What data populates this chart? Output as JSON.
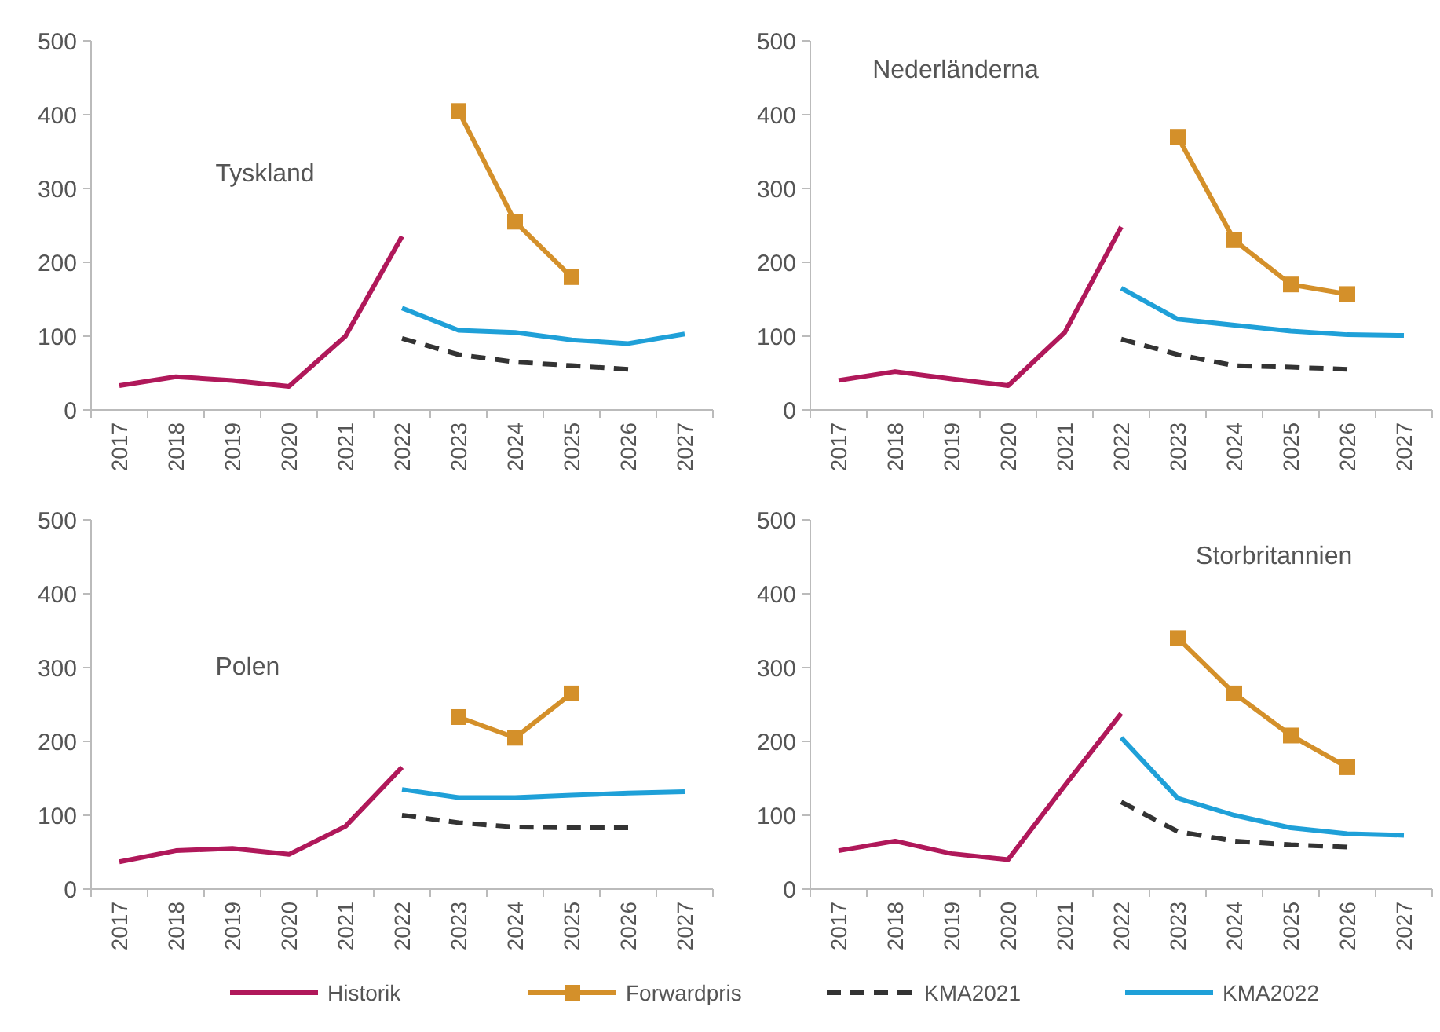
{
  "chart_data": [
    {
      "type": "line",
      "title": "Tyskland",
      "categories": [
        "2017",
        "2018",
        "2019",
        "2020",
        "2021",
        "2022",
        "2023",
        "2024",
        "2025",
        "2026",
        "2027"
      ],
      "ylim": [
        0,
        500
      ],
      "yticks": [
        0,
        100,
        200,
        300,
        400,
        500
      ],
      "grid": false,
      "legend": "bottom",
      "series": [
        {
          "name": "Historik",
          "color": "#b0185a",
          "line_style": "solid",
          "marker": "none",
          "values": [
            33,
            45,
            40,
            32,
            100,
            235,
            null,
            null,
            null,
            null,
            null
          ]
        },
        {
          "name": "Forwardpris",
          "color": "#d4902a",
          "line_style": "solid",
          "marker": "square",
          "values": [
            null,
            null,
            null,
            null,
            null,
            null,
            405,
            255,
            180,
            null,
            null
          ]
        },
        {
          "name": "KMA2021",
          "color": "#333333",
          "line_style": "dashed",
          "marker": "none",
          "values": [
            null,
            null,
            null,
            null,
            null,
            97,
            75,
            65,
            60,
            55,
            null
          ]
        },
        {
          "name": "KMA2022",
          "color": "#1fa0d8",
          "line_style": "solid",
          "marker": "none",
          "values": [
            null,
            null,
            null,
            null,
            null,
            138,
            108,
            105,
            95,
            90,
            103
          ]
        }
      ]
    },
    {
      "type": "line",
      "title": "Nederländerna",
      "categories": [
        "2017",
        "2018",
        "2019",
        "2020",
        "2021",
        "2022",
        "2023",
        "2024",
        "2025",
        "2026",
        "2027"
      ],
      "ylim": [
        0,
        500
      ],
      "yticks": [
        0,
        100,
        200,
        300,
        400,
        500
      ],
      "grid": false,
      "series": [
        {
          "color": "#b0185a",
          "line_style": "solid",
          "marker": "none",
          "values": [
            40,
            52,
            42,
            33,
            105,
            248,
            null,
            null,
            null,
            null,
            null
          ]
        },
        {
          "color": "#d4902a",
          "line_style": "solid",
          "marker": "square",
          "values": [
            null,
            null,
            null,
            null,
            null,
            null,
            370,
            230,
            170,
            157,
            null
          ]
        },
        {
          "color": "#333333",
          "line_style": "dashed",
          "marker": "none",
          "values": [
            null,
            null,
            null,
            null,
            null,
            96,
            75,
            60,
            58,
            55,
            null
          ]
        },
        {
          "color": "#1fa0d8",
          "line_style": "solid",
          "marker": "none",
          "values": [
            null,
            null,
            null,
            null,
            null,
            165,
            123,
            115,
            107,
            102,
            101
          ]
        }
      ]
    },
    {
      "type": "line",
      "title": "Polen",
      "categories": [
        "2017",
        "2018",
        "2019",
        "2020",
        "2021",
        "2022",
        "2023",
        "2024",
        "2025",
        "2026",
        "2027"
      ],
      "ylim": [
        0,
        500
      ],
      "yticks": [
        0,
        100,
        200,
        300,
        400,
        500
      ],
      "grid": false,
      "series": [
        {
          "color": "#b0185a",
          "line_style": "solid",
          "marker": "none",
          "values": [
            37,
            52,
            55,
            47,
            85,
            165,
            null,
            null,
            null,
            null,
            null
          ]
        },
        {
          "color": "#d4902a",
          "line_style": "solid",
          "marker": "square",
          "values": [
            null,
            null,
            null,
            null,
            null,
            null,
            233,
            205,
            265,
            null,
            null
          ]
        },
        {
          "color": "#333333",
          "line_style": "dashed",
          "marker": "none",
          "values": [
            null,
            null,
            null,
            null,
            null,
            100,
            90,
            84,
            83,
            83,
            null
          ]
        },
        {
          "color": "#1fa0d8",
          "line_style": "solid",
          "marker": "none",
          "values": [
            null,
            null,
            null,
            null,
            null,
            135,
            124,
            124,
            127,
            130,
            132
          ]
        }
      ]
    },
    {
      "type": "line",
      "title": "Storbritannien",
      "categories": [
        "2017",
        "2018",
        "2019",
        "2020",
        "2021",
        "2022",
        "2023",
        "2024",
        "2025",
        "2026",
        "2027"
      ],
      "ylim": [
        0,
        500
      ],
      "yticks": [
        0,
        100,
        200,
        300,
        400,
        500
      ],
      "grid": false,
      "series": [
        {
          "color": "#b0185a",
          "line_style": "solid",
          "marker": "none",
          "values": [
            52,
            65,
            48,
            40,
            140,
            238,
            null,
            null,
            null,
            null,
            null
          ]
        },
        {
          "color": "#d4902a",
          "line_style": "solid",
          "marker": "square",
          "values": [
            null,
            null,
            null,
            null,
            null,
            null,
            340,
            265,
            208,
            165,
            null
          ]
        },
        {
          "color": "#333333",
          "line_style": "dashed",
          "marker": "none",
          "values": [
            null,
            null,
            null,
            null,
            null,
            118,
            78,
            65,
            60,
            57,
            null
          ]
        },
        {
          "color": "#1fa0d8",
          "line_style": "solid",
          "marker": "none",
          "values": [
            null,
            null,
            null,
            null,
            null,
            205,
            123,
            100,
            83,
            75,
            73
          ]
        }
      ]
    }
  ]
}
